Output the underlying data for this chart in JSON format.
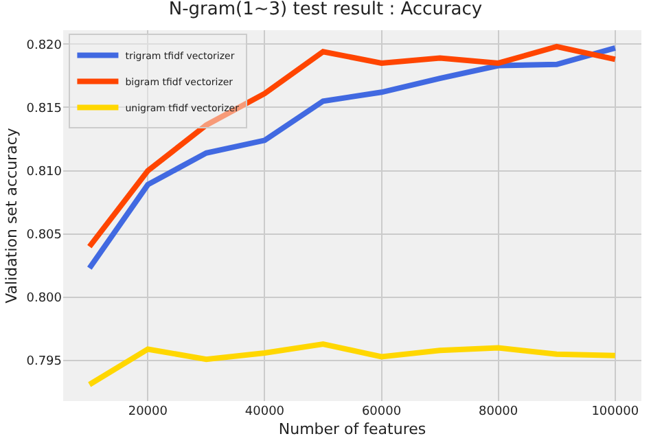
{
  "chart_data": {
    "type": "line",
    "title": "N-gram(1~3) test result : Accuracy",
    "xlabel": "Number of features",
    "ylabel": "Validation set accuracy",
    "x": [
      10000,
      20000,
      30000,
      40000,
      50000,
      60000,
      70000,
      80000,
      90000,
      100000
    ],
    "series": [
      {
        "name": "trigram tfidf vectorizer",
        "color": "#4169e1",
        "values": [
          0.8023,
          0.8089,
          0.8114,
          0.8124,
          0.8155,
          0.8162,
          0.8173,
          0.8183,
          0.8184,
          0.8197
        ]
      },
      {
        "name": "bigram tfidf vectorizer",
        "color": "#ff4500",
        "values": [
          0.804,
          0.81,
          0.8136,
          0.8161,
          0.8194,
          0.8185,
          0.8189,
          0.8185,
          0.8198,
          0.8188
        ]
      },
      {
        "name": "unigram tfidf vectorizer",
        "color": "#ffd700",
        "values": [
          0.7931,
          0.7959,
          0.7951,
          0.7956,
          0.7963,
          0.7953,
          0.7958,
          0.796,
          0.7955,
          0.7954
        ]
      }
    ],
    "xlim": [
      5500,
      104500
    ],
    "xticks": [
      20000,
      40000,
      60000,
      80000,
      100000
    ],
    "ylim": [
      0.7918,
      0.8211
    ],
    "yticks": [
      0.795,
      {
        "value": 0.8,
        "label": "0.800"
      },
      0.805,
      {
        "value": 0.81,
        "label": "0.810"
      },
      0.815,
      {
        "value": 0.82,
        "label": "0.820"
      }
    ],
    "grid": true,
    "legend": "top left",
    "marker": "none",
    "line_style": "solid"
  }
}
